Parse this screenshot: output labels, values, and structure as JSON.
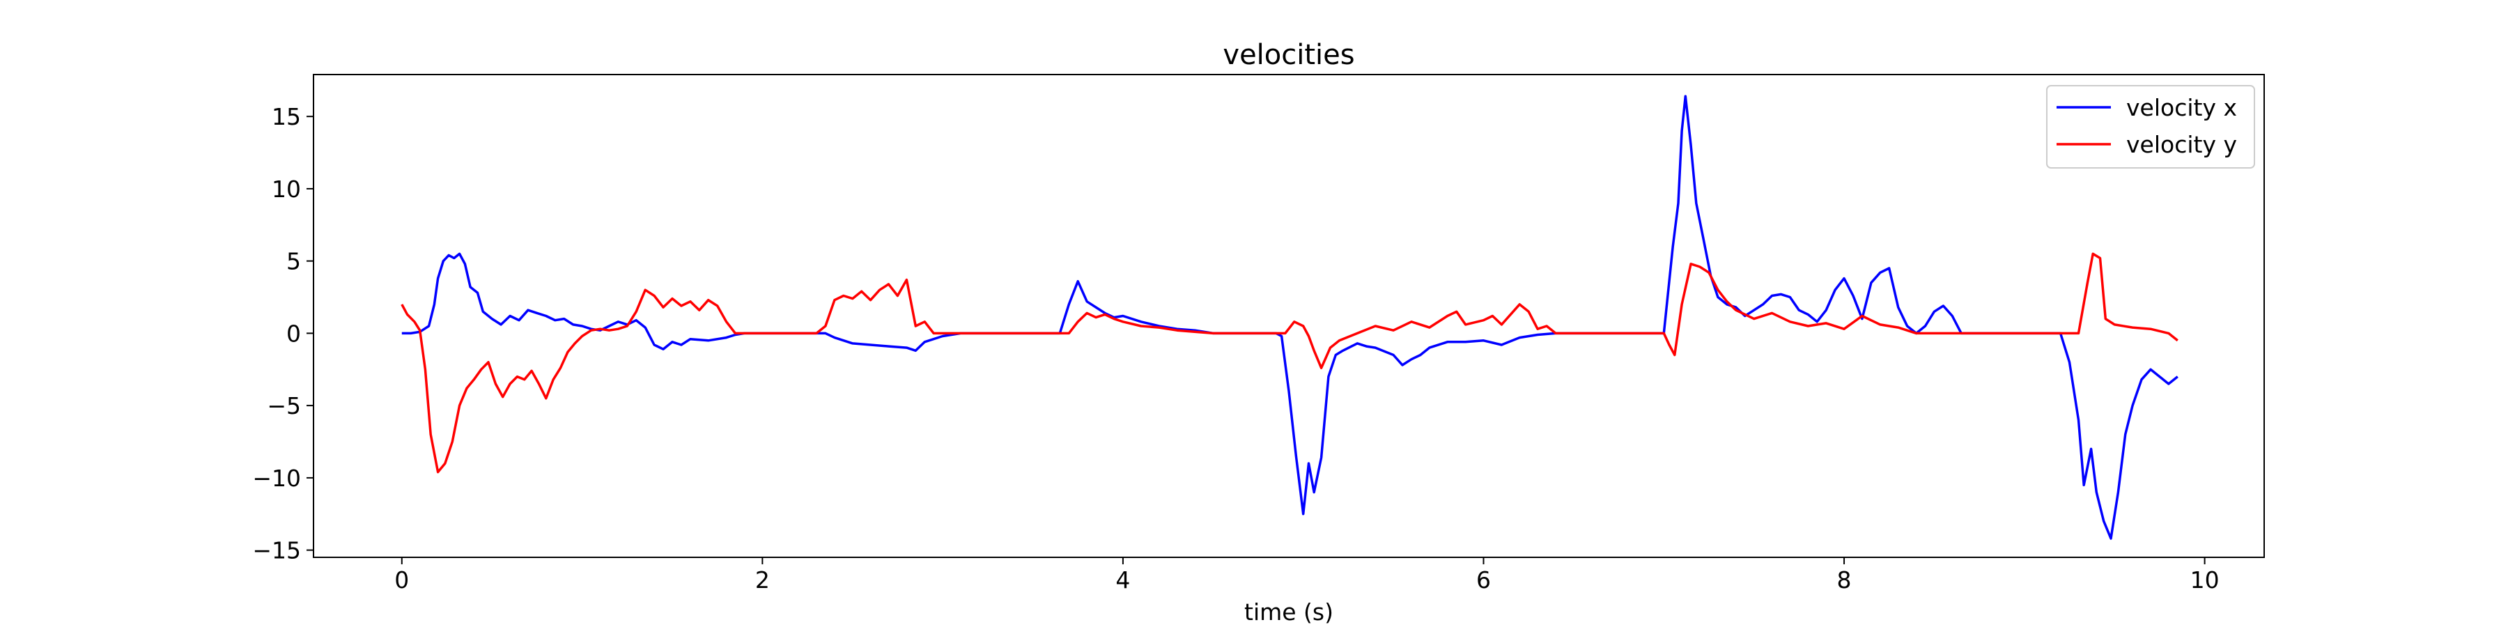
{
  "chart_data": {
    "type": "line",
    "title": "velocities",
    "xlabel": "time (s)",
    "ylabel": "",
    "xlim": [
      -0.49,
      10.33
    ],
    "ylim": [
      -15.5,
      17.9
    ],
    "xticks": [
      0,
      2,
      4,
      6,
      8,
      10
    ],
    "yticks": [
      -15,
      -10,
      -5,
      0,
      5,
      10,
      15
    ],
    "grid": false,
    "legend_position": "top-right",
    "series": [
      {
        "name": "velocity x",
        "color": "#0000ff",
        "points": [
          [
            0.0,
            0.0
          ],
          [
            0.05,
            0.0
          ],
          [
            0.1,
            0.1
          ],
          [
            0.15,
            0.5
          ],
          [
            0.18,
            2.0
          ],
          [
            0.2,
            3.8
          ],
          [
            0.23,
            5.0
          ],
          [
            0.26,
            5.4
          ],
          [
            0.29,
            5.2
          ],
          [
            0.32,
            5.5
          ],
          [
            0.35,
            4.8
          ],
          [
            0.38,
            3.2
          ],
          [
            0.42,
            2.8
          ],
          [
            0.45,
            1.5
          ],
          [
            0.5,
            1.0
          ],
          [
            0.55,
            0.6
          ],
          [
            0.6,
            1.2
          ],
          [
            0.65,
            0.9
          ],
          [
            0.7,
            1.6
          ],
          [
            0.75,
            1.4
          ],
          [
            0.8,
            1.2
          ],
          [
            0.85,
            0.9
          ],
          [
            0.9,
            1.0
          ],
          [
            0.95,
            0.6
          ],
          [
            1.0,
            0.5
          ],
          [
            1.05,
            0.3
          ],
          [
            1.1,
            0.2
          ],
          [
            1.15,
            0.5
          ],
          [
            1.2,
            0.8
          ],
          [
            1.25,
            0.6
          ],
          [
            1.3,
            0.9
          ],
          [
            1.35,
            0.4
          ],
          [
            1.4,
            -0.8
          ],
          [
            1.45,
            -1.1
          ],
          [
            1.5,
            -0.6
          ],
          [
            1.55,
            -0.8
          ],
          [
            1.6,
            -0.4
          ],
          [
            1.7,
            -0.5
          ],
          [
            1.8,
            -0.3
          ],
          [
            1.85,
            -0.1
          ],
          [
            1.9,
            0.0
          ],
          [
            2.0,
            0.0
          ],
          [
            2.2,
            0.0
          ],
          [
            2.35,
            0.0
          ],
          [
            2.4,
            -0.3
          ],
          [
            2.5,
            -0.7
          ],
          [
            2.6,
            -0.8
          ],
          [
            2.7,
            -0.9
          ],
          [
            2.8,
            -1.0
          ],
          [
            2.85,
            -1.2
          ],
          [
            2.9,
            -0.6
          ],
          [
            3.0,
            -0.2
          ],
          [
            3.1,
            0.0
          ],
          [
            3.5,
            0.0
          ],
          [
            3.65,
            0.0
          ],
          [
            3.7,
            2.0
          ],
          [
            3.75,
            3.6
          ],
          [
            3.8,
            2.2
          ],
          [
            3.85,
            1.8
          ],
          [
            3.9,
            1.4
          ],
          [
            3.95,
            1.1
          ],
          [
            4.0,
            1.2
          ],
          [
            4.1,
            0.8
          ],
          [
            4.2,
            0.5
          ],
          [
            4.3,
            0.3
          ],
          [
            4.4,
            0.2
          ],
          [
            4.5,
            0.0
          ],
          [
            4.85,
            0.0
          ],
          [
            4.88,
            -0.2
          ],
          [
            4.92,
            -4.0
          ],
          [
            4.96,
            -8.5
          ],
          [
            5.0,
            -12.5
          ],
          [
            5.03,
            -9.0
          ],
          [
            5.06,
            -11.0
          ],
          [
            5.1,
            -8.6
          ],
          [
            5.14,
            -3.0
          ],
          [
            5.18,
            -1.5
          ],
          [
            5.22,
            -1.2
          ],
          [
            5.3,
            -0.7
          ],
          [
            5.35,
            -0.9
          ],
          [
            5.4,
            -1.0
          ],
          [
            5.5,
            -1.5
          ],
          [
            5.55,
            -2.2
          ],
          [
            5.6,
            -1.8
          ],
          [
            5.65,
            -1.5
          ],
          [
            5.7,
            -1.0
          ],
          [
            5.8,
            -0.6
          ],
          [
            5.9,
            -0.6
          ],
          [
            6.0,
            -0.5
          ],
          [
            6.1,
            -0.8
          ],
          [
            6.2,
            -0.3
          ],
          [
            6.3,
            -0.1
          ],
          [
            6.4,
            0.0
          ],
          [
            6.6,
            0.0
          ],
          [
            6.8,
            0.0
          ],
          [
            7.0,
            0.0
          ],
          [
            7.05,
            6.0
          ],
          [
            7.08,
            9.0
          ],
          [
            7.1,
            14.0
          ],
          [
            7.12,
            16.4
          ],
          [
            7.15,
            13.0
          ],
          [
            7.18,
            9.0
          ],
          [
            7.22,
            6.5
          ],
          [
            7.26,
            4.0
          ],
          [
            7.3,
            2.5
          ],
          [
            7.35,
            2.0
          ],
          [
            7.4,
            1.8
          ],
          [
            7.45,
            1.2
          ],
          [
            7.5,
            1.6
          ],
          [
            7.55,
            2.0
          ],
          [
            7.6,
            2.6
          ],
          [
            7.65,
            2.7
          ],
          [
            7.7,
            2.5
          ],
          [
            7.75,
            1.6
          ],
          [
            7.8,
            1.3
          ],
          [
            7.85,
            0.8
          ],
          [
            7.9,
            1.6
          ],
          [
            7.95,
            3.0
          ],
          [
            8.0,
            3.8
          ],
          [
            8.05,
            2.6
          ],
          [
            8.1,
            1.0
          ],
          [
            8.15,
            3.5
          ],
          [
            8.2,
            4.2
          ],
          [
            8.25,
            4.5
          ],
          [
            8.3,
            1.8
          ],
          [
            8.35,
            0.5
          ],
          [
            8.4,
            0.0
          ],
          [
            8.45,
            0.5
          ],
          [
            8.5,
            1.5
          ],
          [
            8.55,
            1.9
          ],
          [
            8.6,
            1.2
          ],
          [
            8.65,
            0.0
          ],
          [
            9.0,
            0.0
          ],
          [
            9.2,
            0.0
          ],
          [
            9.25,
            -2.0
          ],
          [
            9.3,
            -6.0
          ],
          [
            9.33,
            -10.5
          ],
          [
            9.37,
            -8.0
          ],
          [
            9.4,
            -11.0
          ],
          [
            9.44,
            -13.0
          ],
          [
            9.48,
            -14.2
          ],
          [
            9.52,
            -11.0
          ],
          [
            9.56,
            -7.0
          ],
          [
            9.6,
            -5.0
          ],
          [
            9.65,
            -3.2
          ],
          [
            9.7,
            -2.5
          ],
          [
            9.75,
            -3.0
          ],
          [
            9.8,
            -3.5
          ],
          [
            9.85,
            -3.0
          ]
        ]
      },
      {
        "name": "velocity y",
        "color": "#ff0000",
        "points": [
          [
            0.0,
            2.0
          ],
          [
            0.03,
            1.3
          ],
          [
            0.07,
            0.8
          ],
          [
            0.1,
            0.2
          ],
          [
            0.13,
            -2.5
          ],
          [
            0.16,
            -7.0
          ],
          [
            0.2,
            -9.6
          ],
          [
            0.24,
            -9.0
          ],
          [
            0.28,
            -7.5
          ],
          [
            0.32,
            -5.0
          ],
          [
            0.36,
            -3.8
          ],
          [
            0.4,
            -3.2
          ],
          [
            0.44,
            -2.5
          ],
          [
            0.48,
            -2.0
          ],
          [
            0.52,
            -3.5
          ],
          [
            0.56,
            -4.4
          ],
          [
            0.6,
            -3.5
          ],
          [
            0.64,
            -3.0
          ],
          [
            0.68,
            -3.2
          ],
          [
            0.72,
            -2.6
          ],
          [
            0.76,
            -3.5
          ],
          [
            0.8,
            -4.5
          ],
          [
            0.84,
            -3.2
          ],
          [
            0.88,
            -2.4
          ],
          [
            0.92,
            -1.3
          ],
          [
            0.96,
            -0.7
          ],
          [
            1.0,
            -0.2
          ],
          [
            1.05,
            0.2
          ],
          [
            1.1,
            0.3
          ],
          [
            1.15,
            0.2
          ],
          [
            1.2,
            0.3
          ],
          [
            1.25,
            0.5
          ],
          [
            1.3,
            1.5
          ],
          [
            1.35,
            3.0
          ],
          [
            1.4,
            2.6
          ],
          [
            1.45,
            1.8
          ],
          [
            1.5,
            2.4
          ],
          [
            1.55,
            1.9
          ],
          [
            1.6,
            2.2
          ],
          [
            1.65,
            1.6
          ],
          [
            1.7,
            2.3
          ],
          [
            1.75,
            1.9
          ],
          [
            1.8,
            0.8
          ],
          [
            1.85,
            0.0
          ],
          [
            2.0,
            0.0
          ],
          [
            2.3,
            0.0
          ],
          [
            2.35,
            0.5
          ],
          [
            2.4,
            2.3
          ],
          [
            2.45,
            2.6
          ],
          [
            2.5,
            2.4
          ],
          [
            2.55,
            2.9
          ],
          [
            2.6,
            2.3
          ],
          [
            2.65,
            3.0
          ],
          [
            2.7,
            3.4
          ],
          [
            2.75,
            2.6
          ],
          [
            2.8,
            3.7
          ],
          [
            2.85,
            0.5
          ],
          [
            2.9,
            0.8
          ],
          [
            2.95,
            0.0
          ],
          [
            3.1,
            0.0
          ],
          [
            3.5,
            0.0
          ],
          [
            3.7,
            0.0
          ],
          [
            3.75,
            0.8
          ],
          [
            3.8,
            1.4
          ],
          [
            3.85,
            1.1
          ],
          [
            3.9,
            1.3
          ],
          [
            3.95,
            1.0
          ],
          [
            4.0,
            0.8
          ],
          [
            4.1,
            0.5
          ],
          [
            4.2,
            0.4
          ],
          [
            4.3,
            0.2
          ],
          [
            4.5,
            0.0
          ],
          [
            4.9,
            0.0
          ],
          [
            4.95,
            0.8
          ],
          [
            5.0,
            0.5
          ],
          [
            5.03,
            -0.2
          ],
          [
            5.06,
            -1.2
          ],
          [
            5.1,
            -2.4
          ],
          [
            5.15,
            -1.0
          ],
          [
            5.2,
            -0.5
          ],
          [
            5.3,
            0.0
          ],
          [
            5.4,
            0.5
          ],
          [
            5.5,
            0.2
          ],
          [
            5.6,
            0.8
          ],
          [
            5.7,
            0.4
          ],
          [
            5.8,
            1.2
          ],
          [
            5.85,
            1.5
          ],
          [
            5.9,
            0.6
          ],
          [
            6.0,
            0.9
          ],
          [
            6.05,
            1.2
          ],
          [
            6.1,
            0.6
          ],
          [
            6.15,
            1.3
          ],
          [
            6.2,
            2.0
          ],
          [
            6.25,
            1.5
          ],
          [
            6.3,
            0.3
          ],
          [
            6.35,
            0.5
          ],
          [
            6.4,
            0.0
          ],
          [
            6.6,
            0.0
          ],
          [
            6.9,
            0.0
          ],
          [
            7.0,
            0.0
          ],
          [
            7.03,
            -0.8
          ],
          [
            7.06,
            -1.5
          ],
          [
            7.1,
            2.0
          ],
          [
            7.15,
            4.8
          ],
          [
            7.2,
            4.6
          ],
          [
            7.25,
            4.2
          ],
          [
            7.3,
            3.0
          ],
          [
            7.35,
            2.2
          ],
          [
            7.4,
            1.6
          ],
          [
            7.5,
            1.0
          ],
          [
            7.6,
            1.4
          ],
          [
            7.7,
            0.8
          ],
          [
            7.8,
            0.5
          ],
          [
            7.9,
            0.7
          ],
          [
            8.0,
            0.3
          ],
          [
            8.1,
            1.2
          ],
          [
            8.2,
            0.6
          ],
          [
            8.3,
            0.4
          ],
          [
            8.4,
            0.0
          ],
          [
            8.6,
            0.0
          ],
          [
            9.0,
            0.0
          ],
          [
            9.3,
            0.0
          ],
          [
            9.35,
            3.5
          ],
          [
            9.38,
            5.5
          ],
          [
            9.42,
            5.2
          ],
          [
            9.45,
            1.0
          ],
          [
            9.5,
            0.6
          ],
          [
            9.6,
            0.4
          ],
          [
            9.7,
            0.3
          ],
          [
            9.8,
            0.0
          ],
          [
            9.85,
            -0.5
          ]
        ]
      }
    ]
  }
}
